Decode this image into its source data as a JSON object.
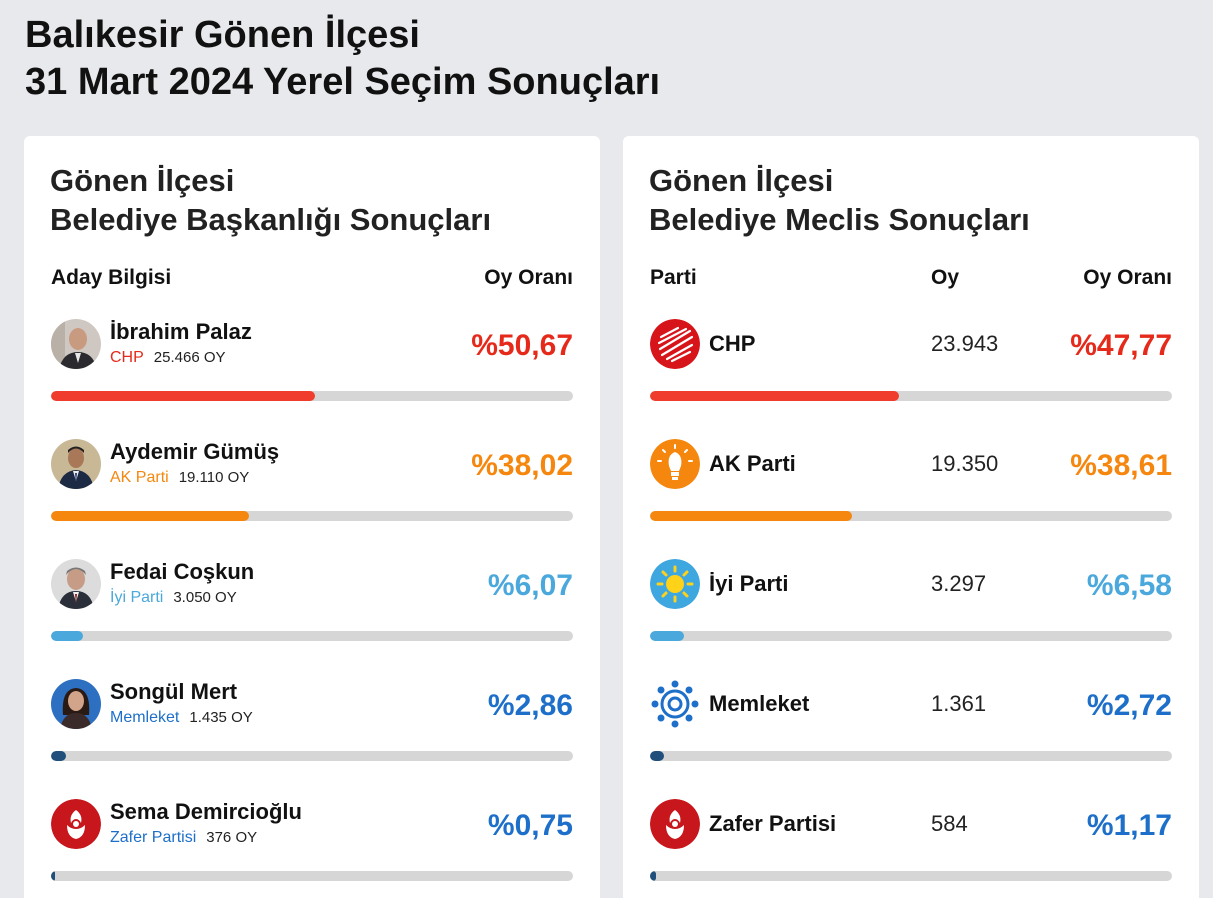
{
  "page": {
    "title_line1": "Balıkesir Gönen İlçesi",
    "title_line2": "31 Mart 2024 Yerel Seçim Sonuçları"
  },
  "mayor": {
    "title_line1": "Gönen İlçesi",
    "title_line2": "Belediye Başkanlığı Sonuçları",
    "col_candidate": "Aday Bilgisi",
    "col_rate": "Oy Oranı",
    "candidates": [
      {
        "name": "İbrahim Palaz",
        "party": "CHP",
        "votes": "25.466 OY",
        "pct_label": "%50,67",
        "share": 0.5067,
        "color": "#e52a1b",
        "bar_color": "#f03c2d",
        "avatar": "man-bald-icon"
      },
      {
        "name": "Aydemir Gümüş",
        "party": "AK Parti",
        "votes": "19.110 OY",
        "pct_label": "%38,02",
        "share": 0.3802,
        "color": "#f5870f",
        "bar_color": "#f5870f",
        "avatar": "man-suit-icon"
      },
      {
        "name": "Fedai Coşkun",
        "party": "İyi Parti",
        "votes": "3.050 OY",
        "pct_label": "%6,07",
        "share": 0.0607,
        "color": "#4aa8dc",
        "bar_color": "#4aa8dc",
        "avatar": "man-gray-icon"
      },
      {
        "name": "Songül Mert",
        "party": "Memleket",
        "votes": "1.435 OY",
        "pct_label": "%2,86",
        "share": 0.0286,
        "color": "#1d6fc9",
        "bar_color": "#1f4f7a",
        "avatar": "woman-icon"
      },
      {
        "name": "Sema Demircioğlu",
        "party": "Zafer Partisi",
        "votes": "376 OY",
        "pct_label": "%0,75",
        "share": 0.0075,
        "color": "#1d6fc9",
        "bar_color": "#1f4f7a",
        "avatar": "zafer-logo-icon"
      }
    ]
  },
  "council": {
    "title_line1": "Gönen İlçesi",
    "title_line2": "Belediye Meclis Sonuçları",
    "col_party": "Parti",
    "col_votes": "Oy",
    "col_rate": "Oy Oranı",
    "parties": [
      {
        "name": "CHP",
        "votes": "23.943",
        "pct_label": "%47,77",
        "share": 0.4777,
        "color": "#e52a1b",
        "bar_color": "#f03c2d",
        "logo": "chp-logo-icon"
      },
      {
        "name": "AK Parti",
        "votes": "19.350",
        "pct_label": "%38,61",
        "share": 0.3861,
        "color": "#f5870f",
        "bar_color": "#f5870f",
        "logo": "akparti-logo-icon"
      },
      {
        "name": "İyi Parti",
        "votes": "3.297",
        "pct_label": "%6,58",
        "share": 0.0658,
        "color": "#4aa8dc",
        "bar_color": "#4aa8dc",
        "logo": "iyiparti-logo-icon"
      },
      {
        "name": "Memleket",
        "votes": "1.361",
        "pct_label": "%2,72",
        "share": 0.0272,
        "color": "#1d6fc9",
        "bar_color": "#1f4f7a",
        "logo": "memleket-logo-icon"
      },
      {
        "name": "Zafer Partisi",
        "votes": "584",
        "pct_label": "%1,17",
        "share": 0.0117,
        "color": "#1d6fc9",
        "bar_color": "#1f4f7a",
        "logo": "zafer-logo-icon"
      }
    ]
  }
}
